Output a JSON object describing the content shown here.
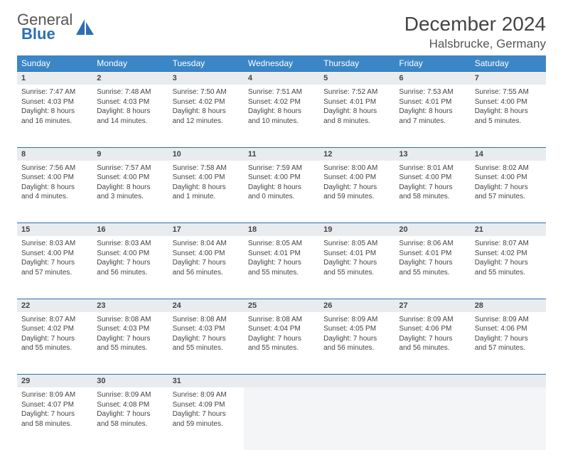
{
  "brand": {
    "part1": "General",
    "part2": "Blue"
  },
  "title": "December 2024",
  "location": "Halsbrucke, Germany",
  "colors": {
    "header_bg": "#3b86c6",
    "header_fg": "#ffffff",
    "daynum_bg": "#e9ecef",
    "daynum_border": "#2d6fb5",
    "text": "#444444",
    "logo_blue": "#2d6fb5"
  },
  "weekdays": [
    "Sunday",
    "Monday",
    "Tuesday",
    "Wednesday",
    "Thursday",
    "Friday",
    "Saturday"
  ],
  "weeks": [
    [
      {
        "n": "1",
        "sr": "7:47 AM",
        "ss": "4:03 PM",
        "dl": "8 hours and 16 minutes."
      },
      {
        "n": "2",
        "sr": "7:48 AM",
        "ss": "4:03 PM",
        "dl": "8 hours and 14 minutes."
      },
      {
        "n": "3",
        "sr": "7:50 AM",
        "ss": "4:02 PM",
        "dl": "8 hours and 12 minutes."
      },
      {
        "n": "4",
        "sr": "7:51 AM",
        "ss": "4:02 PM",
        "dl": "8 hours and 10 minutes."
      },
      {
        "n": "5",
        "sr": "7:52 AM",
        "ss": "4:01 PM",
        "dl": "8 hours and 8 minutes."
      },
      {
        "n": "6",
        "sr": "7:53 AM",
        "ss": "4:01 PM",
        "dl": "8 hours and 7 minutes."
      },
      {
        "n": "7",
        "sr": "7:55 AM",
        "ss": "4:00 PM",
        "dl": "8 hours and 5 minutes."
      }
    ],
    [
      {
        "n": "8",
        "sr": "7:56 AM",
        "ss": "4:00 PM",
        "dl": "8 hours and 4 minutes."
      },
      {
        "n": "9",
        "sr": "7:57 AM",
        "ss": "4:00 PM",
        "dl": "8 hours and 3 minutes."
      },
      {
        "n": "10",
        "sr": "7:58 AM",
        "ss": "4:00 PM",
        "dl": "8 hours and 1 minute."
      },
      {
        "n": "11",
        "sr": "7:59 AM",
        "ss": "4:00 PM",
        "dl": "8 hours and 0 minutes."
      },
      {
        "n": "12",
        "sr": "8:00 AM",
        "ss": "4:00 PM",
        "dl": "7 hours and 59 minutes."
      },
      {
        "n": "13",
        "sr": "8:01 AM",
        "ss": "4:00 PM",
        "dl": "7 hours and 58 minutes."
      },
      {
        "n": "14",
        "sr": "8:02 AM",
        "ss": "4:00 PM",
        "dl": "7 hours and 57 minutes."
      }
    ],
    [
      {
        "n": "15",
        "sr": "8:03 AM",
        "ss": "4:00 PM",
        "dl": "7 hours and 57 minutes."
      },
      {
        "n": "16",
        "sr": "8:03 AM",
        "ss": "4:00 PM",
        "dl": "7 hours and 56 minutes."
      },
      {
        "n": "17",
        "sr": "8:04 AM",
        "ss": "4:00 PM",
        "dl": "7 hours and 56 minutes."
      },
      {
        "n": "18",
        "sr": "8:05 AM",
        "ss": "4:01 PM",
        "dl": "7 hours and 55 minutes."
      },
      {
        "n": "19",
        "sr": "8:05 AM",
        "ss": "4:01 PM",
        "dl": "7 hours and 55 minutes."
      },
      {
        "n": "20",
        "sr": "8:06 AM",
        "ss": "4:01 PM",
        "dl": "7 hours and 55 minutes."
      },
      {
        "n": "21",
        "sr": "8:07 AM",
        "ss": "4:02 PM",
        "dl": "7 hours and 55 minutes."
      }
    ],
    [
      {
        "n": "22",
        "sr": "8:07 AM",
        "ss": "4:02 PM",
        "dl": "7 hours and 55 minutes."
      },
      {
        "n": "23",
        "sr": "8:08 AM",
        "ss": "4:03 PM",
        "dl": "7 hours and 55 minutes."
      },
      {
        "n": "24",
        "sr": "8:08 AM",
        "ss": "4:03 PM",
        "dl": "7 hours and 55 minutes."
      },
      {
        "n": "25",
        "sr": "8:08 AM",
        "ss": "4:04 PM",
        "dl": "7 hours and 55 minutes."
      },
      {
        "n": "26",
        "sr": "8:09 AM",
        "ss": "4:05 PM",
        "dl": "7 hours and 56 minutes."
      },
      {
        "n": "27",
        "sr": "8:09 AM",
        "ss": "4:06 PM",
        "dl": "7 hours and 56 minutes."
      },
      {
        "n": "28",
        "sr": "8:09 AM",
        "ss": "4:06 PM",
        "dl": "7 hours and 57 minutes."
      }
    ],
    [
      {
        "n": "29",
        "sr": "8:09 AM",
        "ss": "4:07 PM",
        "dl": "7 hours and 58 minutes."
      },
      {
        "n": "30",
        "sr": "8:09 AM",
        "ss": "4:08 PM",
        "dl": "7 hours and 58 minutes."
      },
      {
        "n": "31",
        "sr": "8:09 AM",
        "ss": "4:09 PM",
        "dl": "7 hours and 59 minutes."
      },
      null,
      null,
      null,
      null
    ]
  ],
  "labels": {
    "sunrise": "Sunrise:",
    "sunset": "Sunset:",
    "daylight": "Daylight:"
  }
}
